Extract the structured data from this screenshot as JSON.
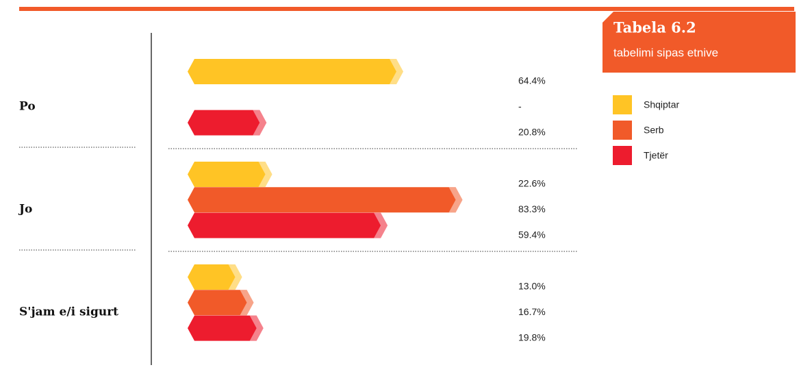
{
  "chart_data": {
    "type": "bar",
    "orientation": "horizontal",
    "title": "Tabela 6.2",
    "subtitle": "tabelimi sipas etnive",
    "categories": [
      "Po",
      "Jo",
      "S'jam e/i sigurt"
    ],
    "series": [
      {
        "name": "Shqiptar",
        "color": "#ffc425",
        "values": [
          64.4,
          22.6,
          13.0
        ],
        "value_labels": [
          "64.4%",
          "22.6%",
          "13.0%"
        ]
      },
      {
        "name": "Serb",
        "color": "#f15a29",
        "values": [
          null,
          83.3,
          16.7
        ],
        "value_labels": [
          "-",
          "83.3%",
          "16.7%"
        ]
      },
      {
        "name": "Tjetër",
        "color": "#ed1c2e",
        "values": [
          20.8,
          59.4,
          19.8
        ],
        "value_labels": [
          "20.8%",
          "59.4%",
          "19.8%"
        ]
      }
    ]
  }
}
